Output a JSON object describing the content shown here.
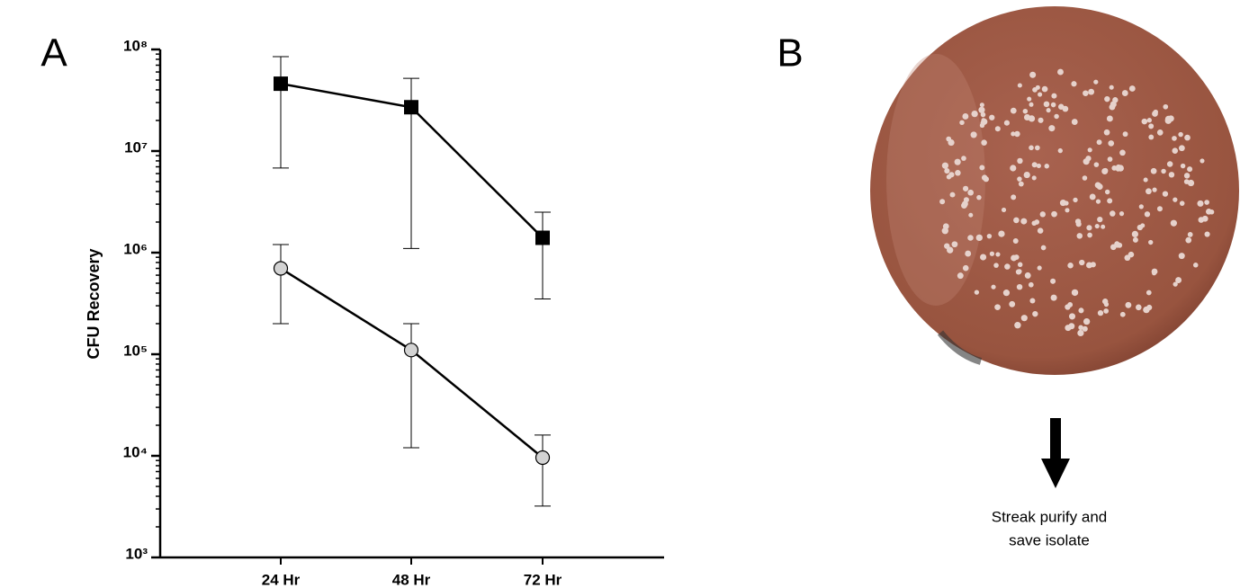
{
  "panel_labels": [
    "A",
    "B"
  ],
  "chart_data": {
    "type": "line",
    "y_label": "CFU Recovery",
    "log_y": true,
    "categories": [
      "24 Hr",
      "48 Hr",
      "72 Hr"
    ],
    "ylim": [
      1000,
      100000000
    ],
    "yticks": [
      {
        "value": 1000,
        "label": "10³"
      },
      {
        "value": 10000,
        "label": "10⁴"
      },
      {
        "value": 100000,
        "label": "10⁵"
      },
      {
        "value": 1000000,
        "label": "10⁶"
      },
      {
        "value": 10000000,
        "label": "10⁷"
      },
      {
        "value": 100000000,
        "label": "10⁸"
      }
    ],
    "series": [
      {
        "color": "#000000",
        "marker": "square",
        "values": [
          46000000,
          27000000,
          1400000
        ],
        "lower": [
          6800000,
          1100000,
          350000
        ],
        "upper": [
          85000000,
          52000000,
          2500000
        ]
      },
      {
        "color": "#d3d3d3",
        "marker": "circle",
        "values": [
          700000,
          110000,
          9600
        ],
        "lower": [
          200000,
          12000,
          3200
        ],
        "upper": [
          1200000,
          200000,
          16000
        ]
      }
    ]
  },
  "panel_b": {
    "caption": [
      "Streak purify and",
      "save isolate"
    ]
  }
}
